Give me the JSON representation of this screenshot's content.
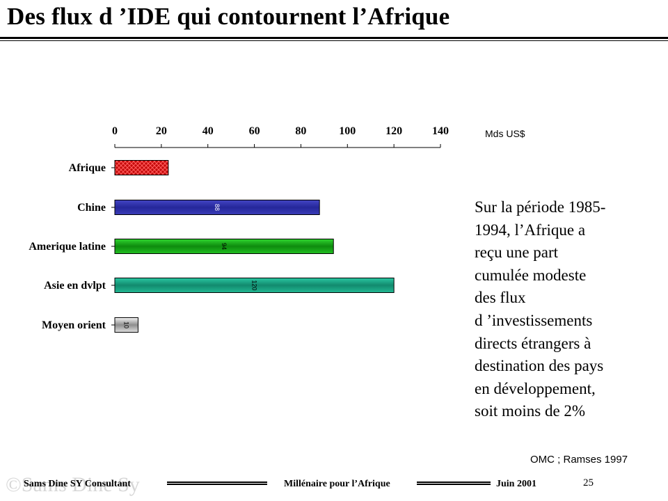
{
  "title": "Des flux d ’IDE qui contournent l’Afrique",
  "unit_label": "Mds  US$",
  "text_lines": [
    "Sur la période 1985-",
    "1994, l’Afrique a",
    "reçu une part",
    "cumulée modeste",
    "des flux",
    "d ’investissements",
    "directs étrangers à",
    "destination des pays",
    "en développement,",
    "soit moins de 2%"
  ],
  "source": "OMC  ; Ramses 1997",
  "footer": {
    "left": "Sams Dine SY Consultant",
    "center": "Millénaire pour l’Afrique",
    "right": "Juin  2001",
    "page": "25",
    "watermark": "©Sams Dine Sy"
  },
  "chart_data": {
    "type": "bar",
    "orientation": "horizontal",
    "categories": [
      "Afrique",
      "Chine",
      "Amerique latine",
      "Asie en dvlpt",
      "Moyen orient"
    ],
    "values": [
      23,
      88,
      94,
      120,
      10
    ],
    "data_labels": [
      "",
      "88",
      "94",
      "120",
      "10"
    ],
    "colors": [
      "#cc1010",
      "#2b2e9e",
      "#17b317",
      "#1aa385",
      "#c8c8c8"
    ],
    "xlim": [
      0,
      140
    ],
    "ticks": [
      0,
      20,
      40,
      60,
      80,
      100,
      120,
      140
    ],
    "axis_position": "top",
    "grid": false,
    "legend": "none"
  }
}
